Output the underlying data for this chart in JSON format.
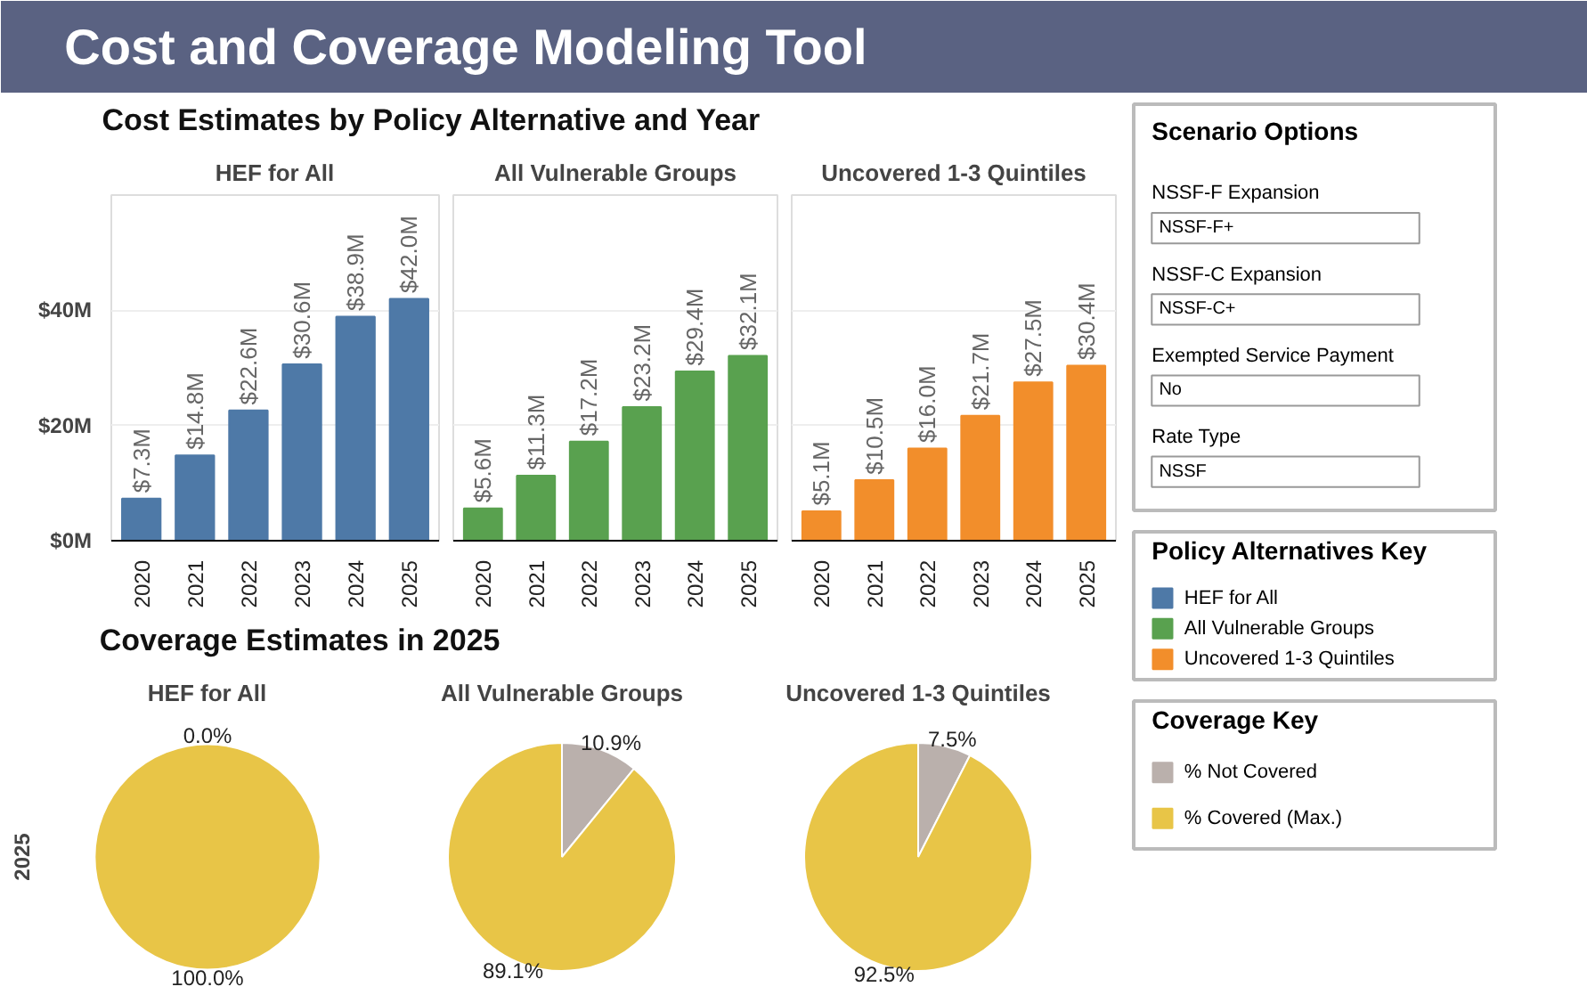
{
  "chart_data": [
    {
      "type": "other",
      "title": "Cost and Coverage Modeling Tool"
    },
    {
      "type": "bar",
      "title": "Cost Estimates by Policy Alternative and Year",
      "subtitle": "HEF for All",
      "categories": [
        "2020",
        "2021",
        "2022",
        "2023",
        "2024",
        "2025"
      ],
      "series": [
        {
          "name": "HEF for All",
          "color": "#4e79a7",
          "values": [
            7.3,
            14.8,
            22.6,
            30.6,
            38.9,
            42.0
          ]
        }
      ],
      "legend": "right",
      "legend_title": "Policy Alternatives Key",
      "value_labels": [
        "$7.3M",
        "$14.8M",
        "$22.6M",
        "$30.6M",
        "$38.9M",
        "$42.0M"
      ],
      "ylim": [
        0,
        60
      ],
      "yticks": [
        {
          "value": 0,
          "label": "$0M"
        },
        {
          "value": 20,
          "label": "$20M"
        },
        {
          "value": 40,
          "label": "$40M"
        }
      ],
      "grid": "y"
    },
    {
      "type": "bar",
      "subtitle": "All Vulnerable Groups",
      "categories": [
        "2020",
        "2021",
        "2022",
        "2023",
        "2024",
        "2025"
      ],
      "series": [
        {
          "name": "All Vulnerable Groups",
          "color": "#59a14f",
          "values": [
            5.6,
            11.3,
            17.2,
            23.2,
            29.4,
            32.1
          ]
        }
      ],
      "value_labels": [
        "$5.6M",
        "$11.3M",
        "$17.2M",
        "$23.2M",
        "$29.4M",
        "$32.1M"
      ],
      "ylim": [
        0,
        60
      ],
      "yticks": [
        {
          "value": 0,
          "label": null
        },
        {
          "value": 20,
          "label": null
        },
        {
          "value": 40,
          "label": null
        }
      ],
      "grid": "y",
      "tick_labels": "x"
    },
    {
      "type": "bar",
      "subtitle": "Uncovered 1-3 Quintiles",
      "categories": [
        "2020",
        "2021",
        "2022",
        "2023",
        "2024",
        "2025"
      ],
      "series": [
        {
          "name": "Uncovered 1-3 Quintiles",
          "color": "#f28e2b",
          "values": [
            5.1,
            10.5,
            16.0,
            21.7,
            27.5,
            30.4
          ]
        }
      ],
      "value_labels": [
        "$5.1M",
        "$10.5M",
        "$16.0M",
        "$21.7M",
        "$27.5M",
        "$30.4M"
      ],
      "ylim": [
        0,
        60
      ],
      "yticks": [
        {
          "value": 0,
          "label": null
        },
        {
          "value": 20,
          "label": null
        },
        {
          "value": 40,
          "label": null
        }
      ],
      "grid": "y",
      "tick_labels": "x"
    },
    {
      "type": "pie",
      "title": "Coverage Estimates in 2025",
      "subtitle": "HEF for All",
      "ylabel": "2025",
      "legend": "right",
      "legend_title": "Coverage Key",
      "categories": [
        "% Not Covered",
        "% Covered (Max.)"
      ],
      "values": [
        0.0,
        100.0
      ],
      "colors": [
        "#bab0ac",
        "#e8c547"
      ],
      "value_labels": [
        "0.0%",
        "100.0%"
      ]
    },
    {
      "type": "pie",
      "subtitle": "All Vulnerable Groups",
      "values": [
        10.9,
        89.1
      ],
      "colors": [
        "#bab0ac",
        "#e8c547"
      ],
      "value_labels": [
        "10.9%",
        "89.1%"
      ]
    },
    {
      "type": "pie",
      "subtitle": "Uncovered 1-3 Quintiles",
      "values": [
        7.5,
        92.5
      ],
      "colors": [
        "#bab0ac",
        "#e8c547"
      ],
      "value_labels": [
        "7.5%",
        "92.5%"
      ]
    },
    {
      "type": "other",
      "title": "Scenario Options",
      "annotations": [
        "NSSF-F Expansion",
        "NSSF-F+",
        "NSSF-C Expansion",
        "NSSF-C+",
        "Exempted Service Payment",
        "No",
        "Rate Type",
        "NSSF"
      ]
    }
  ]
}
